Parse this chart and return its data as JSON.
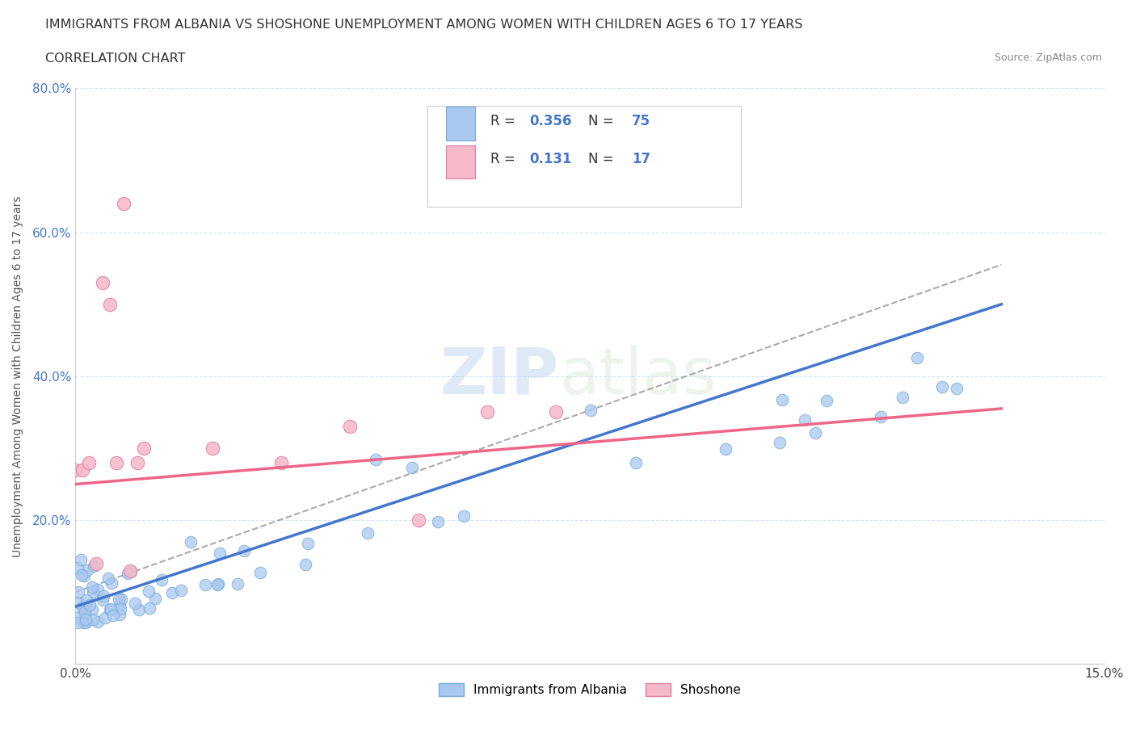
{
  "title_line1": "IMMIGRANTS FROM ALBANIA VS SHOSHONE UNEMPLOYMENT AMONG WOMEN WITH CHILDREN AGES 6 TO 17 YEARS",
  "title_line2": "CORRELATION CHART",
  "source_text": "Source: ZipAtlas.com",
  "ylabel": "Unemployment Among Women with Children Ages 6 to 17 years",
  "watermark_zip": "ZIP",
  "watermark_atlas": "atlas",
  "xlim": [
    0.0,
    0.15
  ],
  "ylim": [
    0.0,
    0.8
  ],
  "albania_color": "#a8c8f0",
  "albania_edge": "#7badd6",
  "shoshone_color": "#f5b8c8",
  "shoshone_edge": "#e080a0",
  "albania_R": 0.356,
  "albania_N": 75,
  "shoshone_R": 0.131,
  "shoshone_N": 17,
  "albania_line_color": "#4477cc",
  "shoshone_line_color": "#ee6688",
  "dashed_line_color": "#aaaaaa",
  "legend_R_color": "#4477cc",
  "grid_color": "#ccddee",
  "ytick_color": "#4477cc"
}
